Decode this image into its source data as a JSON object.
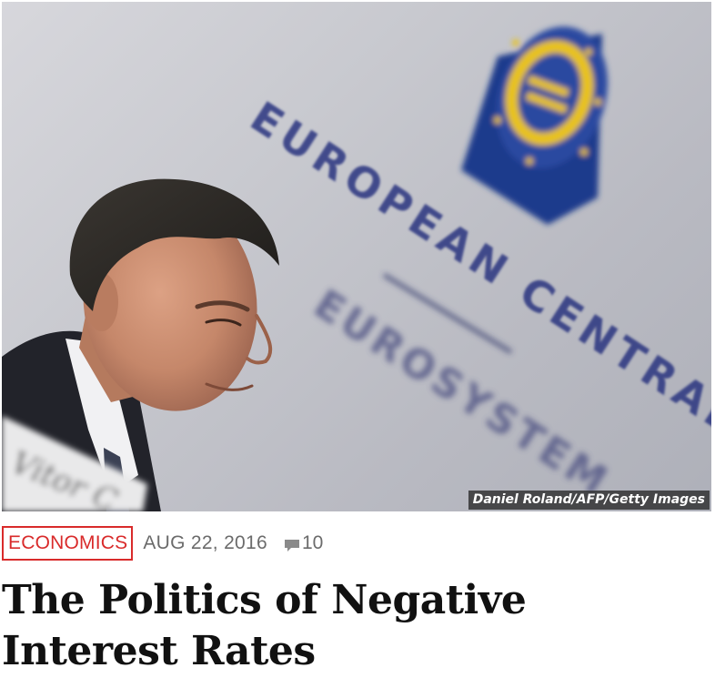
{
  "article": {
    "photo": {
      "credit": "Daniel Roland/AFP/Getty Images",
      "backdrop_text": {
        "line1": "EUROPEAN CENTRAL BANK",
        "line2": "EUROSYSTEM",
        "nameplate": "Vitor C"
      },
      "colors": {
        "backdrop": "#c8c9cf",
        "logo_blue": "#1c3a8c",
        "logo_yellow": "#e8c21e",
        "suit": "#22232a",
        "skin": "#c98a6b"
      }
    },
    "category": "ECONOMICS",
    "date": "AUG 22, 2016",
    "comment_count": "10",
    "headline": "The Politics of Negative Interest Rates",
    "colors": {
      "category": "#d92b2b",
      "meta_text": "#6b6b6b",
      "headline": "#111111"
    }
  }
}
